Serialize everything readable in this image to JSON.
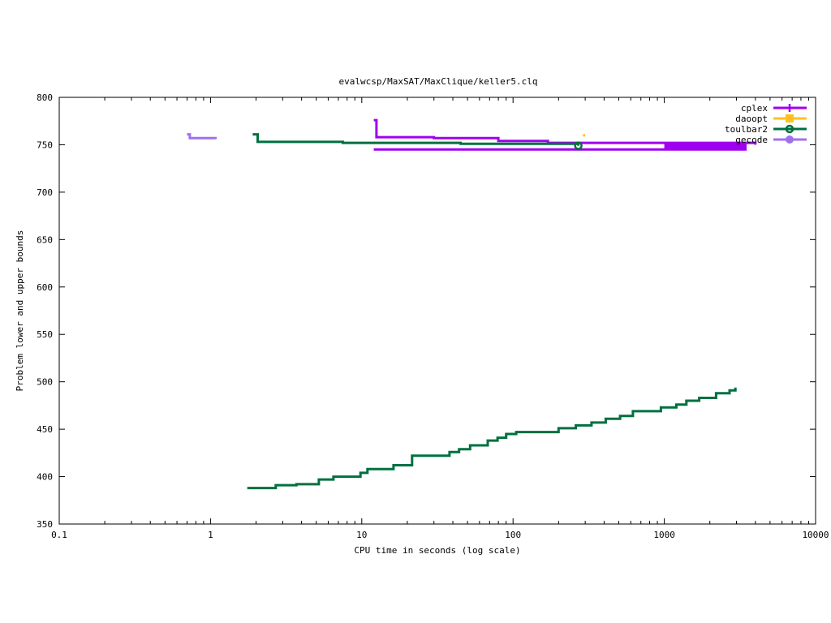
{
  "chart_data": {
    "type": "line",
    "title": "evalwcsp/MaxSAT/MaxClique/keller5.clq",
    "xlabel": "CPU time in seconds (log scale)",
    "ylabel": "Problem lower and upper bounds",
    "xscale": "log",
    "xlim": [
      0.1,
      10000
    ],
    "ylim": [
      350,
      800
    ],
    "grid": false,
    "legend_position": "top-right",
    "x_ticks": [
      {
        "value": 0.1,
        "label": "0.1"
      },
      {
        "value": 1,
        "label": "1"
      },
      {
        "value": 10,
        "label": "10"
      },
      {
        "value": 100,
        "label": "100"
      },
      {
        "value": 1000,
        "label": "1000"
      },
      {
        "value": 10000,
        "label": "10000"
      }
    ],
    "y_ticks": [
      {
        "value": 350,
        "label": "350"
      },
      {
        "value": 400,
        "label": "400"
      },
      {
        "value": 450,
        "label": "450"
      },
      {
        "value": 500,
        "label": "500"
      },
      {
        "value": 550,
        "label": "550"
      },
      {
        "value": 600,
        "label": "600"
      },
      {
        "value": 650,
        "label": "650"
      },
      {
        "value": 700,
        "label": "700"
      },
      {
        "value": 750,
        "label": "750"
      },
      {
        "value": 800,
        "label": "800"
      }
    ],
    "series": [
      {
        "name": "cplex",
        "color": "#a000f0",
        "marker": "plus",
        "segments": [
          {
            "role": "upper bound",
            "steps": [
              [
                12,
                776
              ],
              [
                12.5,
                758
              ],
              [
                30,
                757
              ],
              [
                80,
                754
              ],
              [
                170,
                752
              ],
              [
                4000,
                750
              ]
            ]
          },
          {
            "role": "lower bound",
            "steps": [
              [
                12,
                745
              ],
              [
                3500,
                745
              ]
            ]
          }
        ],
        "dense_band": {
          "x_from": 1000,
          "x_to": 3500,
          "y_from": 745,
          "y_to": 752
        }
      },
      {
        "name": "daoopt",
        "color": "#ffc020",
        "marker": "square",
        "segments": [
          {
            "role": "upper bound",
            "steps": [
              [
                290,
                760
              ],
              [
                300,
                760
              ]
            ]
          }
        ]
      },
      {
        "name": "toulbar2",
        "color": "#007040",
        "marker": "circle",
        "segments": [
          {
            "role": "upper bound",
            "steps": [
              [
                1.9,
                761
              ],
              [
                2.05,
                753
              ],
              [
                7.5,
                752
              ],
              [
                45,
                751
              ],
              [
                270,
                749
              ]
            ]
          },
          {
            "role": "lower bound",
            "steps": [
              [
                1.75,
                388
              ],
              [
                2.7,
                391
              ],
              [
                3.7,
                392
              ],
              [
                5.2,
                397
              ],
              [
                6.5,
                400
              ],
              [
                9.8,
                404
              ],
              [
                10.9,
                408
              ],
              [
                16.2,
                412
              ],
              [
                21.5,
                422
              ],
              [
                38,
                426
              ],
              [
                44,
                429
              ],
              [
                52,
                433
              ],
              [
                68,
                438
              ],
              [
                79,
                441
              ],
              [
                90,
                445
              ],
              [
                105,
                447
              ],
              [
                200,
                451
              ],
              [
                260,
                454
              ],
              [
                330,
                457
              ],
              [
                410,
                461
              ],
              [
                510,
                464
              ],
              [
                620,
                469
              ],
              [
                950,
                473
              ],
              [
                1200,
                476
              ],
              [
                1400,
                480
              ],
              [
                1700,
                483
              ],
              [
                2200,
                488
              ],
              [
                2700,
                491
              ],
              [
                2950,
                494
              ]
            ]
          }
        ]
      },
      {
        "name": "gecode",
        "color": "#a070f0",
        "marker": "dot",
        "segments": [
          {
            "role": "upper bound",
            "steps": [
              [
                0.7,
                761
              ],
              [
                0.73,
                757
              ],
              [
                1.08,
                756
              ]
            ]
          }
        ]
      }
    ],
    "end_markers": [
      {
        "series": "toulbar2",
        "x": 270,
        "y": 749
      }
    ]
  }
}
